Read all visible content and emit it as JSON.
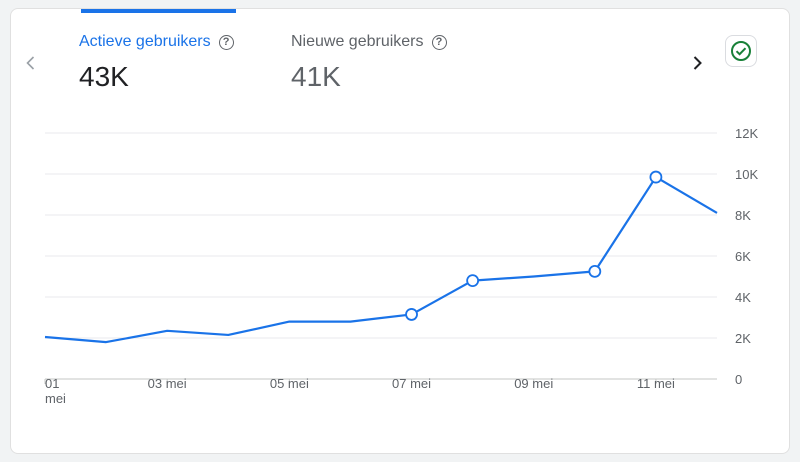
{
  "metrics": [
    {
      "label": "Actieve gebruikers",
      "value": "43K",
      "active": true
    },
    {
      "label": "Nieuwe gebruikers",
      "value": "41K",
      "active": false
    }
  ],
  "icons": {
    "help": "help-circle-icon",
    "prev": "chevron-left-icon",
    "next": "chevron-right-icon",
    "status": "check-circle-icon"
  },
  "colors": {
    "accent": "#1a73e8",
    "status_green": "#188038",
    "grid": "#e0e0e0"
  },
  "chart_data": {
    "type": "line",
    "x": [
      "01 mei",
      "02 mei",
      "03 mei",
      "04 mei",
      "05 mei",
      "06 mei",
      "07 mei",
      "08 mei",
      "09 mei",
      "10 mei",
      "11 mei",
      "12 mei"
    ],
    "xticks": [
      {
        "index": 0,
        "label": "01",
        "label2": "mei"
      },
      {
        "index": 2,
        "label": "03 mei"
      },
      {
        "index": 4,
        "label": "05 mei"
      },
      {
        "index": 6,
        "label": "07 mei"
      },
      {
        "index": 8,
        "label": "09 mei"
      },
      {
        "index": 10,
        "label": "11 mei"
      }
    ],
    "series": [
      {
        "values": [
          2050,
          1800,
          2350,
          2150,
          2800,
          2800,
          3150,
          4800,
          5000,
          5250,
          9850,
          8100
        ],
        "markers": [
          6,
          7,
          9,
          10
        ]
      }
    ],
    "yticks": [
      "0",
      "2K",
      "4K",
      "6K",
      "8K",
      "10K",
      "12K"
    ],
    "ylim": [
      0,
      12000
    ],
    "grid": true,
    "y_axis_side": "right"
  }
}
